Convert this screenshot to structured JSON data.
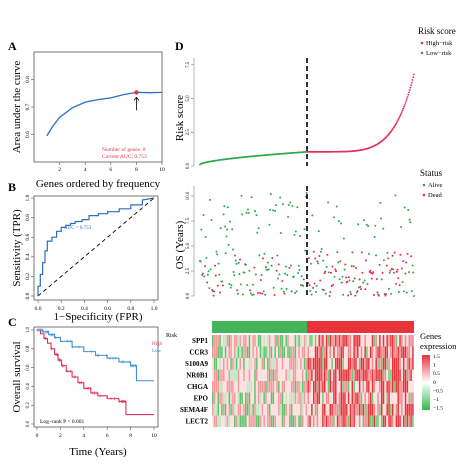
{
  "chart_data": [
    {
      "panel": "A",
      "type": "line",
      "xlabel": "Genes ordered by frequency",
      "ylabel": "Area under the curve",
      "xlim": [
        0,
        10
      ],
      "ylim": [
        0.5,
        0.9
      ],
      "xticks": [
        "2",
        "4",
        "6",
        "8",
        "10"
      ],
      "yticks": [
        "0.6",
        "0.7",
        "0.8"
      ],
      "x": [
        1,
        1.5,
        2,
        3,
        4,
        5,
        6,
        7,
        8,
        9,
        10
      ],
      "y": [
        0.595,
        0.632,
        0.662,
        0.697,
        0.718,
        0.727,
        0.733,
        0.745,
        0.753,
        0.752,
        0.753
      ],
      "series_color": "#2e6fbd",
      "highlight": {
        "x": 8,
        "y": 0.753,
        "color": "#e0305a"
      },
      "annotation": [
        "Number of genes: 8",
        "Current AUC: 0.753"
      ]
    },
    {
      "panel": "B",
      "type": "line",
      "xlabel": "1−Specificity (FPR)",
      "ylabel": "Sensitivity (TPR)",
      "xlim": [
        0,
        1
      ],
      "ylim": [
        0,
        1
      ],
      "xticks": [
        "0.0",
        "0.2",
        "0.4",
        "0.6",
        "0.8",
        "1.0"
      ],
      "yticks": [
        "0.0",
        "0.2",
        "0.4",
        "0.6",
        "0.8",
        "1.0"
      ],
      "series_color": "#2e6fbd",
      "x": [
        0,
        0,
        0.02,
        0.02,
        0.04,
        0.04,
        0.06,
        0.06,
        0.08,
        0.08,
        0.12,
        0.12,
        0.16,
        0.16,
        0.2,
        0.2,
        0.24,
        0.24,
        0.28,
        0.28,
        0.32,
        0.32,
        0.38,
        0.38,
        0.44,
        0.44,
        0.52,
        0.52,
        0.6,
        0.6,
        0.7,
        0.7,
        0.8,
        0.8,
        0.9,
        0.9,
        1.0
      ],
      "y": [
        0,
        0.1,
        0.1,
        0.22,
        0.22,
        0.34,
        0.34,
        0.46,
        0.46,
        0.56,
        0.56,
        0.6,
        0.6,
        0.66,
        0.66,
        0.7,
        0.7,
        0.72,
        0.72,
        0.74,
        0.74,
        0.76,
        0.76,
        0.78,
        0.78,
        0.82,
        0.82,
        0.84,
        0.84,
        0.86,
        0.86,
        0.89,
        0.89,
        0.93,
        0.93,
        0.98,
        1.0
      ],
      "auc_label": "AUC = 0.753",
      "reference_line": true
    },
    {
      "panel": "C",
      "type": "line",
      "xlabel": "Time (Years)",
      "ylabel": "Overall survival",
      "xlim": [
        0,
        10
      ],
      "ylim": [
        0,
        1
      ],
      "xticks": [
        "0",
        "2",
        "4",
        "6",
        "8",
        "10"
      ],
      "yticks": [
        "0.0",
        "0.2",
        "0.4",
        "0.6",
        "0.8",
        "1.0"
      ],
      "legend_title": "Risk",
      "series": [
        {
          "name": "High",
          "color": "#e0305a",
          "x": [
            0,
            0.3,
            0.6,
            0.9,
            1.2,
            1.5,
            1.8,
            2.1,
            2.5,
            3.0,
            3.5,
            4.0,
            4.6,
            5.2,
            6.0,
            7.0,
            7.6,
            7.6,
            10.0
          ],
          "y": [
            1.0,
            0.96,
            0.91,
            0.86,
            0.8,
            0.74,
            0.68,
            0.62,
            0.56,
            0.5,
            0.44,
            0.38,
            0.33,
            0.3,
            0.27,
            0.24,
            0.24,
            0.1,
            0.1
          ]
        },
        {
          "name": "Low",
          "color": "#3d8fd6",
          "x": [
            0,
            0.5,
            1.0,
            1.5,
            2.0,
            3.0,
            4.0,
            5.0,
            6.0,
            7.0,
            8.0,
            8.5,
            8.5,
            10.0
          ],
          "y": [
            1.0,
            0.98,
            0.95,
            0.92,
            0.88,
            0.82,
            0.77,
            0.73,
            0.7,
            0.66,
            0.62,
            0.56,
            0.46,
            0.46
          ]
        }
      ],
      "annotation": "Log−rank P < 0.001"
    },
    {
      "panel": "D1",
      "type": "scatter",
      "ylabel": "Risk score",
      "ylim": [
        0,
        8
      ],
      "yticks": [
        "0.0",
        "2.5",
        "5.0",
        "7.5"
      ],
      "legend_title": "Risk score",
      "series": [
        {
          "name": "High−risk",
          "color": "#e0305a"
        },
        {
          "name": "Low−risk",
          "color": "#2ea84a"
        }
      ],
      "n_points": 300,
      "cutoff_fraction": 0.5,
      "y_range_low": [
        0.1,
        1.05
      ],
      "y_range_high": [
        1.05,
        7.0
      ]
    },
    {
      "panel": "D2",
      "type": "scatter",
      "ylabel": "OS (Years)",
      "ylim": [
        0,
        11
      ],
      "yticks": [
        "0.0",
        "2.5",
        "5.0",
        "7.5",
        "10.0"
      ],
      "legend_title": "Status",
      "series": [
        {
          "name": "Alive",
          "color": "#2ea84a"
        },
        {
          "name": "Dead",
          "color": "#e0305a"
        }
      ]
    },
    {
      "panel": "D3",
      "type": "heatmap",
      "rows": [
        "SPP1",
        "CCR3",
        "S100A9",
        "NR0B1",
        "CHGA",
        "EPO",
        "SEMA4F",
        "LECT2"
      ],
      "group_colors": {
        "low": "#44b45a",
        "high": "#e8333a"
      },
      "legend_title": [
        "Genes",
        "expression"
      ],
      "scale_ticks": [
        "1.5",
        "1",
        "0.5",
        "0",
        "−0.5",
        "−1",
        "−1.5"
      ],
      "scale_colors": [
        "#e8303a",
        "#ffffff",
        "#35b84c"
      ]
    }
  ],
  "panel_labels": [
    "A",
    "B",
    "C",
    "D"
  ]
}
